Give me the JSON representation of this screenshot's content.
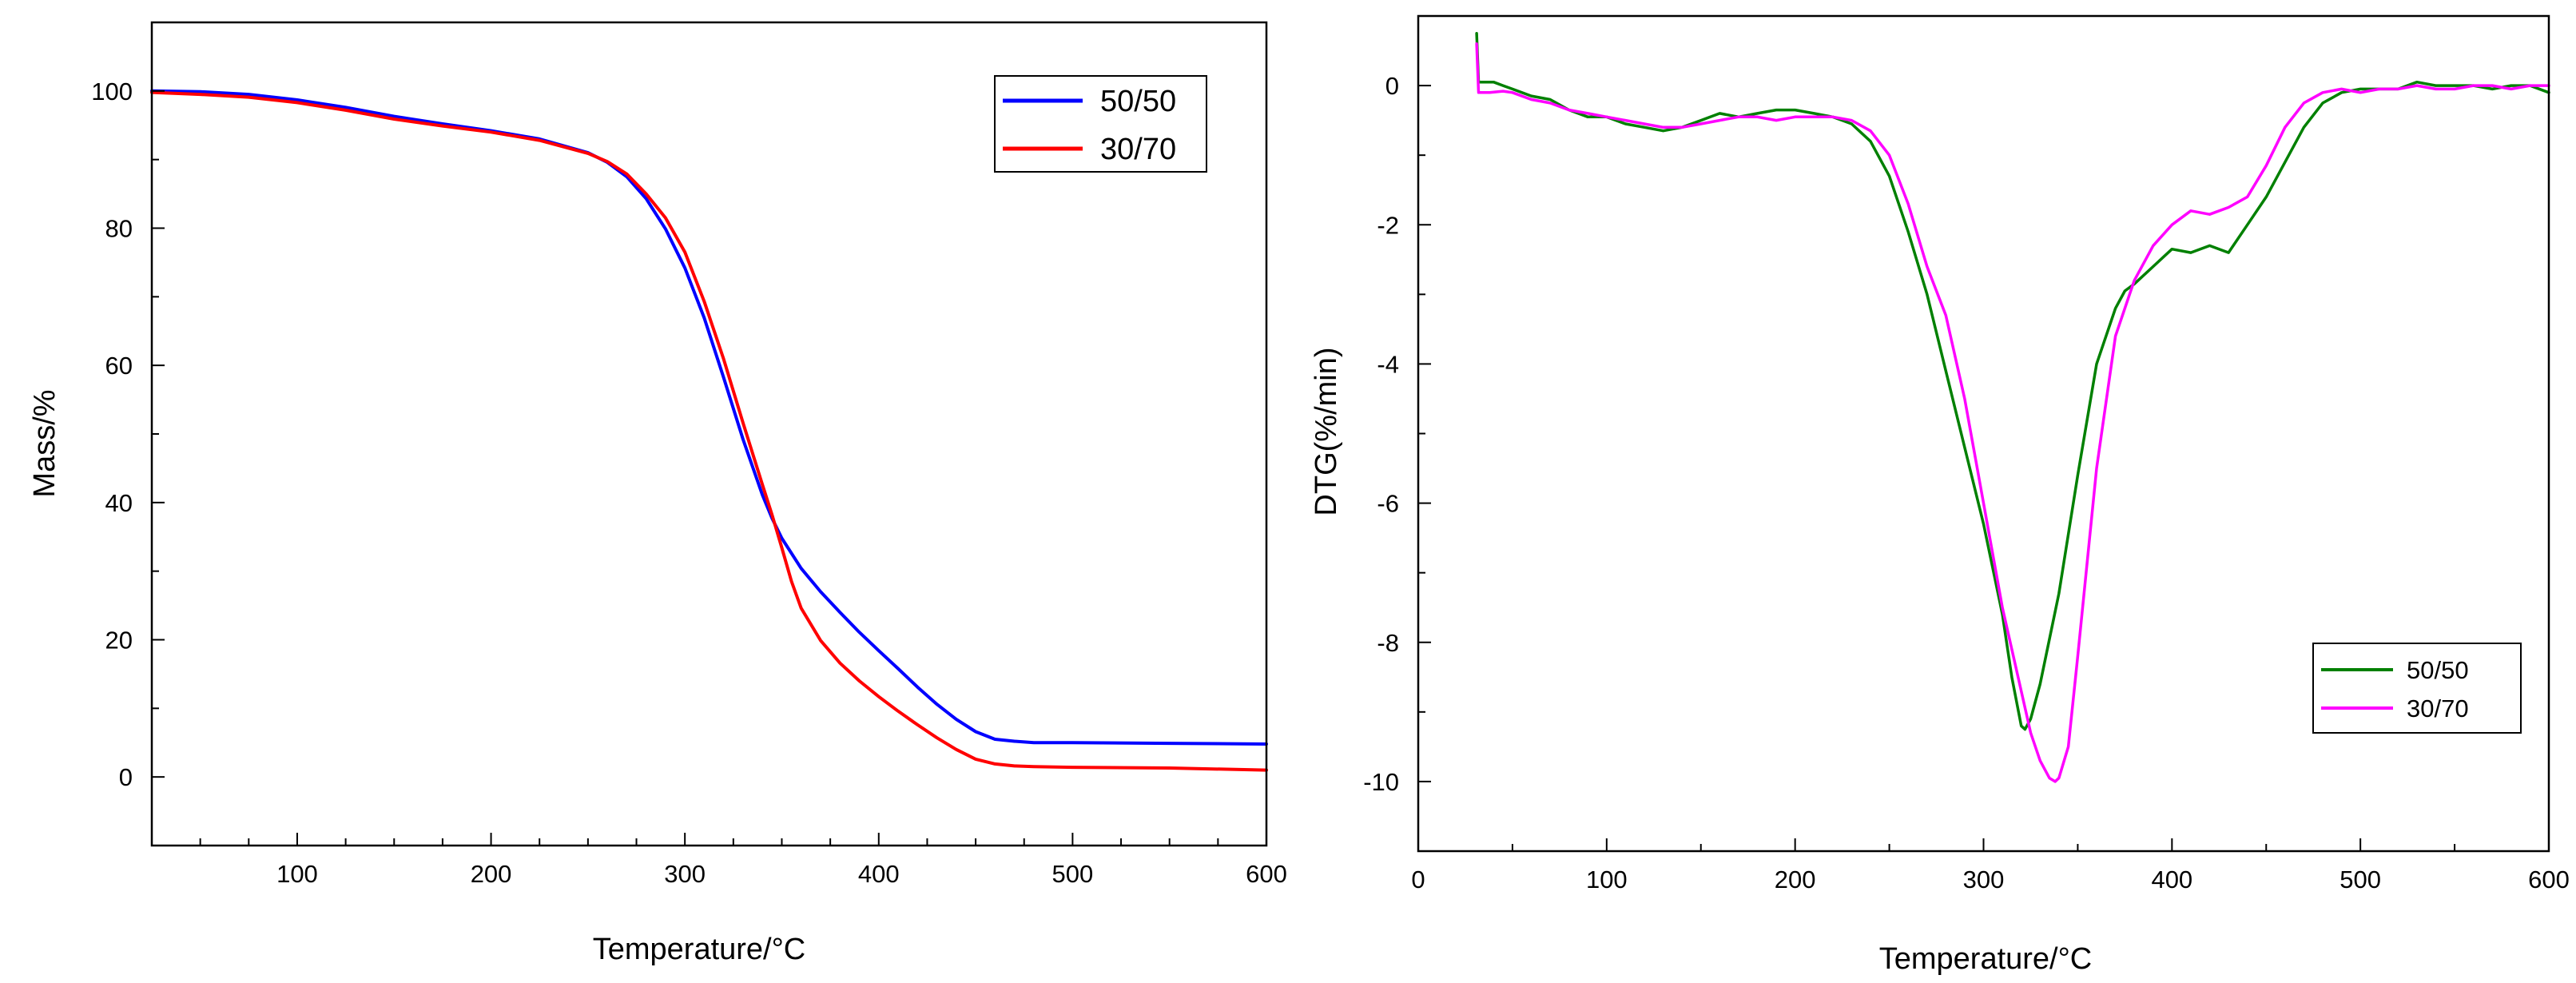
{
  "chart_data": [
    {
      "type": "line",
      "title": "",
      "xlabel": "Temperature/°C",
      "ylabel": "Mass/%",
      "xlim": [
        25,
        600
      ],
      "ylim": [
        -10,
        110
      ],
      "xticks": [
        100,
        200,
        300,
        400,
        500,
        600
      ],
      "yticks": [
        0,
        20,
        40,
        60,
        80,
        100
      ],
      "grid": false,
      "legend_position": "top-right",
      "series": [
        {
          "name": "50/50",
          "color": "#0000ff",
          "x": [
            25,
            50,
            75,
            100,
            125,
            150,
            175,
            200,
            225,
            250,
            260,
            270,
            280,
            290,
            300,
            310,
            320,
            330,
            340,
            345,
            350,
            360,
            370,
            380,
            390,
            400,
            410,
            420,
            430,
            440,
            450,
            460,
            470,
            480,
            500,
            550,
            600
          ],
          "y": [
            100,
            99.9,
            99.5,
            98.7,
            97.6,
            96.3,
            95.2,
            94.2,
            93.0,
            91.0,
            89.6,
            87.5,
            84.3,
            79.9,
            74.2,
            66.9,
            58.2,
            49.2,
            41.1,
            37.7,
            34.8,
            30.4,
            27.0,
            24.0,
            21.1,
            18.4,
            15.8,
            13.1,
            10.6,
            8.4,
            6.6,
            5.5,
            5.2,
            5.0,
            5.0,
            4.9,
            4.8
          ]
        },
        {
          "name": "30/70",
          "color": "#ff0000",
          "x": [
            25,
            50,
            75,
            100,
            125,
            150,
            175,
            200,
            225,
            250,
            260,
            270,
            280,
            290,
            300,
            310,
            320,
            330,
            340,
            345,
            350,
            355,
            360,
            370,
            380,
            390,
            400,
            410,
            420,
            430,
            440,
            450,
            460,
            470,
            480,
            500,
            550,
            600
          ],
          "y": [
            99.8,
            99.5,
            99.1,
            98.3,
            97.2,
            95.9,
            94.9,
            94.0,
            92.8,
            90.9,
            89.7,
            87.9,
            85.0,
            81.5,
            76.5,
            69.3,
            60.9,
            51.6,
            42.6,
            38.2,
            33.4,
            28.5,
            24.6,
            19.9,
            16.6,
            14.0,
            11.7,
            9.6,
            7.6,
            5.7,
            4.0,
            2.6,
            1.9,
            1.6,
            1.5,
            1.4,
            1.3,
            1.0
          ]
        }
      ]
    },
    {
      "type": "line",
      "title": "",
      "xlabel": "Temperature/°C",
      "ylabel": "DTG(%/min)",
      "xlim": [
        0,
        600
      ],
      "ylim": [
        -11,
        1
      ],
      "xticks": [
        0,
        100,
        200,
        300,
        400,
        500,
        600
      ],
      "yticks": [
        0,
        -2,
        -4,
        -6,
        -8,
        -10
      ],
      "grid": false,
      "legend_position": "bottom-right",
      "series": [
        {
          "name": "50/50",
          "color": "#008000",
          "x": [
            31,
            32,
            34,
            40,
            45,
            50,
            60,
            70,
            80,
            90,
            100,
            110,
            120,
            130,
            140,
            150,
            160,
            170,
            180,
            190,
            200,
            210,
            220,
            225,
            230,
            240,
            250,
            260,
            270,
            280,
            290,
            300,
            310,
            315,
            320,
            322,
            325,
            330,
            340,
            350,
            360,
            370,
            375,
            380,
            390,
            400,
            410,
            420,
            430,
            440,
            450,
            460,
            470,
            480,
            490,
            500,
            510,
            520,
            530,
            540,
            550,
            560,
            570,
            580,
            590,
            600
          ],
          "y": [
            0.75,
            0.05,
            0.05,
            0.05,
            0.0,
            -0.05,
            -0.15,
            -0.2,
            -0.35,
            -0.45,
            -0.45,
            -0.55,
            -0.6,
            -0.65,
            -0.6,
            -0.5,
            -0.4,
            -0.45,
            -0.4,
            -0.35,
            -0.35,
            -0.4,
            -0.45,
            -0.5,
            -0.55,
            -0.8,
            -1.3,
            -2.1,
            -3.0,
            -4.1,
            -5.2,
            -6.3,
            -7.6,
            -8.5,
            -9.2,
            -9.25,
            -9.1,
            -8.6,
            -7.3,
            -5.6,
            -4.0,
            -3.2,
            -2.95,
            -2.85,
            -2.6,
            -2.35,
            -2.4,
            -2.3,
            -2.4,
            -2.0,
            -1.6,
            -1.1,
            -0.6,
            -0.25,
            -0.1,
            -0.05,
            -0.05,
            -0.05,
            0.05,
            0.0,
            0.0,
            0.0,
            -0.05,
            0.0,
            0.0,
            -0.1
          ]
        },
        {
          "name": "30/70",
          "color": "#ff00ff",
          "x": [
            31,
            32,
            34,
            38,
            45,
            50,
            60,
            70,
            80,
            90,
            100,
            110,
            120,
            130,
            140,
            150,
            160,
            170,
            180,
            190,
            200,
            210,
            220,
            230,
            240,
            250,
            260,
            270,
            280,
            290,
            300,
            310,
            320,
            325,
            330,
            335,
            338,
            340,
            345,
            350,
            360,
            370,
            380,
            390,
            400,
            410,
            420,
            430,
            440,
            450,
            460,
            470,
            480,
            490,
            500,
            510,
            520,
            530,
            540,
            550,
            560,
            570,
            580,
            590,
            600
          ],
          "y": [
            0.6,
            -0.1,
            -0.1,
            -0.1,
            -0.08,
            -0.1,
            -0.2,
            -0.25,
            -0.35,
            -0.4,
            -0.45,
            -0.5,
            -0.55,
            -0.6,
            -0.6,
            -0.55,
            -0.5,
            -0.45,
            -0.45,
            -0.5,
            -0.45,
            -0.45,
            -0.45,
            -0.5,
            -0.65,
            -1.0,
            -1.7,
            -2.6,
            -3.3,
            -4.5,
            -6.0,
            -7.5,
            -8.7,
            -9.3,
            -9.7,
            -9.95,
            -10.0,
            -9.95,
            -9.5,
            -8.2,
            -5.5,
            -3.6,
            -2.8,
            -2.3,
            -2.0,
            -1.8,
            -1.85,
            -1.75,
            -1.6,
            -1.15,
            -0.6,
            -0.25,
            -0.1,
            -0.05,
            -0.1,
            -0.05,
            -0.05,
            0.0,
            -0.05,
            -0.05,
            0.0,
            0.0,
            -0.05,
            0.0,
            0.0
          ]
        }
      ]
    }
  ]
}
